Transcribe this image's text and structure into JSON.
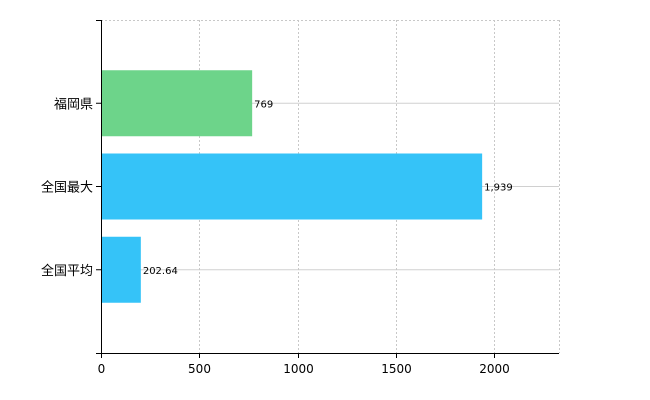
{
  "chart_data": {
    "type": "bar",
    "orientation": "horizontal",
    "categories": [
      "福岡県",
      "全国最大",
      "全国平均"
    ],
    "values": [
      769,
      1939,
      202.64
    ],
    "value_labels": [
      "769",
      "1,939",
      "202.64"
    ],
    "bar_colors": [
      "#6dd48a",
      "#35c3f8",
      "#35c3f8"
    ],
    "xlim": [
      0,
      2330
    ],
    "x_ticks": [
      0,
      500,
      1000,
      1500,
      2000
    ],
    "x_tick_labels": [
      "0",
      "500",
      "1000",
      "1500",
      "2000"
    ],
    "grid": true,
    "title": "",
    "xlabel": "",
    "ylabel": ""
  }
}
